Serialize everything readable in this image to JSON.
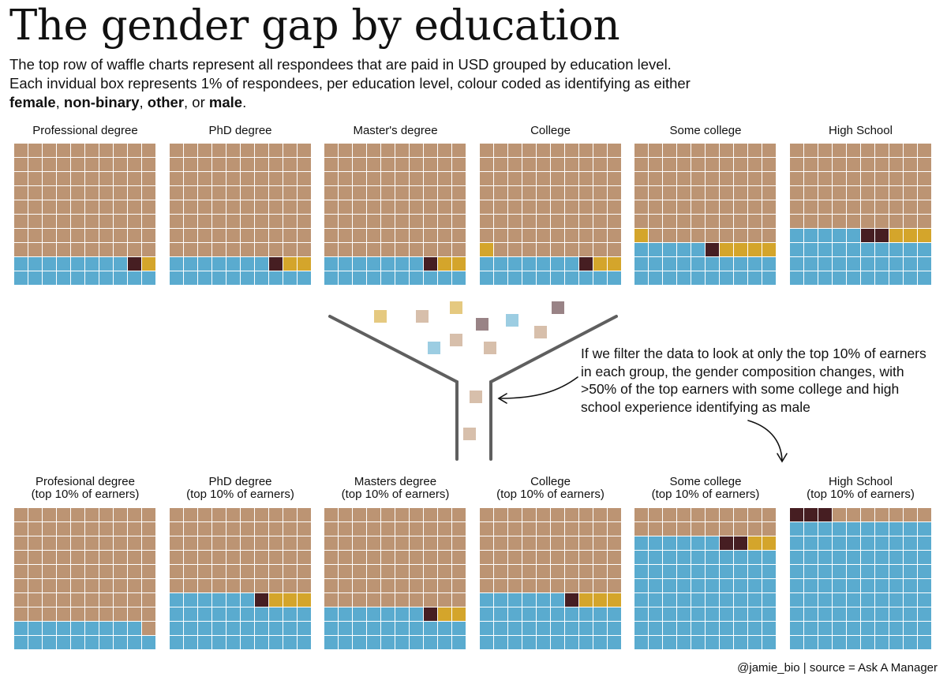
{
  "title": "The gender gap by education",
  "subtitle": {
    "line1": "The top row of waffle charts represent all respondees that are paid in USD grouped by education level.",
    "line2": "Each invidual box represents 1% of respondees, per education level, colour coded as identifying as either",
    "female": "female",
    "sep1": ", ",
    "nonbinary": "non-binary",
    "sep2": ", ",
    "other": "other",
    "sep3": ", or ",
    "male": "male",
    "end": "."
  },
  "colors": {
    "female": "#bc9473",
    "non_binary": "#d4a52b",
    "other": "#461e22",
    "male": "#5aabcf",
    "grid_line": "#ffffff",
    "funnel": "#5f5f5f"
  },
  "annotation": "If we filter the data to look at only the top 10% of earners in each group, the gender composition changes, with >50% of the top earners with some college and high school experience identifying as male",
  "credit": "@jamie_bio | source = Ask A Manager",
  "chart_data": [
    {
      "type": "waffle",
      "row": "all respondees",
      "unit": "1% of respondees per box",
      "legend": [
        "female",
        "non-binary",
        "other",
        "male"
      ],
      "panels": [
        {
          "title": "Professional degree",
          "values": {
            "female": 80,
            "non_binary": 1,
            "other": 1,
            "male": 18
          }
        },
        {
          "title": "PhD degree",
          "values": {
            "female": 80,
            "non_binary": 2,
            "other": 1,
            "male": 17
          }
        },
        {
          "title": "Master's degree",
          "values": {
            "female": 80,
            "non_binary": 2,
            "other": 1,
            "male": 17
          }
        },
        {
          "title": "College",
          "values": {
            "female": 79,
            "non_binary": 3,
            "other": 1,
            "male": 17
          }
        },
        {
          "title": "Some college",
          "values": {
            "female": 69,
            "non_binary": 5,
            "other": 1,
            "male": 25
          }
        },
        {
          "title": "High School",
          "values": {
            "female": 60,
            "non_binary": 3,
            "other": 2,
            "male": 35
          }
        }
      ]
    },
    {
      "type": "waffle",
      "row": "top 10% of earners",
      "unit": "1% of respondees per box",
      "legend": [
        "female",
        "non-binary",
        "other",
        "male"
      ],
      "panels": [
        {
          "title": "Profesional degree",
          "subtitle": "(top 10% of earners)",
          "values": {
            "female": 81,
            "non_binary": 0,
            "other": 0,
            "male": 19
          }
        },
        {
          "title": "PhD degree",
          "subtitle": "(top 10% of earners)",
          "values": {
            "female": 60,
            "non_binary": 3,
            "other": 1,
            "male": 36
          }
        },
        {
          "title": "Masters degree",
          "subtitle": "(top 10% of earners)",
          "values": {
            "female": 70,
            "non_binary": 2,
            "other": 1,
            "male": 27
          }
        },
        {
          "title": "College",
          "subtitle": "(top 10% of earners)",
          "values": {
            "female": 60,
            "non_binary": 3,
            "other": 1,
            "male": 36
          }
        },
        {
          "title": "Some college",
          "subtitle": "(top 10% of earners)",
          "values": {
            "female": 20,
            "non_binary": 2,
            "other": 2,
            "male": 76
          }
        },
        {
          "title": "High School",
          "subtitle": "(top 10% of earners)",
          "values": {
            "female": 7,
            "non_binary": 0,
            "other": 3,
            "male": 90
          }
        }
      ]
    }
  ]
}
